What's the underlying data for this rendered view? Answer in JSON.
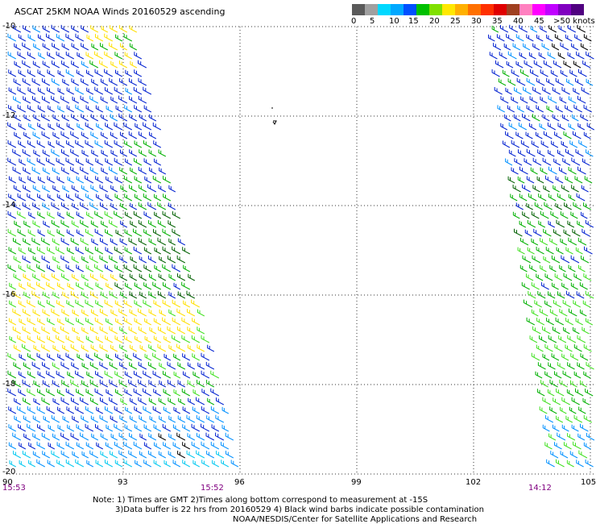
{
  "title": "ASCAT 25KM NOAA Winds 20160529 ascending",
  "legend": {
    "labels": [
      "0",
      "5",
      "10",
      "15",
      "20",
      "25",
      "30",
      "35",
      "40",
      "45",
      ">50 knots"
    ],
    "colors": [
      "#5a5a5a",
      "#a0a0a0",
      "#00d8ff",
      "#00a8ff",
      "#0050ff",
      "#00c000",
      "#80e000",
      "#ffe800",
      "#ffb000",
      "#ff7000",
      "#ff3000",
      "#e00000",
      "#a04020",
      "#ff80c0",
      "#ff00ff",
      "#c000ff",
      "#8000c0",
      "#500080"
    ]
  },
  "axes": {
    "y_labels": [
      "-10",
      "-12",
      "-14",
      "-16",
      "-18",
      "-20"
    ],
    "x_labels": [
      "90",
      "93",
      "96",
      "99",
      "102",
      "105"
    ]
  },
  "time_labels": [
    "15:53",
    "15:52",
    "14:12"
  ],
  "notes": {
    "line1": "Note: 1) Times are GMT 2)Times along bottom correspond to measurement at -15S",
    "line2": "3)Data buffer is 22 hrs from 20160529 4) Black wind barbs indicate possible contamination",
    "line3": "NOAA/NESDIS/Center for Satellite Applications and Research"
  },
  "barb_colors": {
    "cyan": "#00c8f0",
    "lightblue": "#0090ff",
    "blue": "#0020d0",
    "green": "#00b000",
    "lightgreen": "#40e020",
    "darkgreen": "#006000",
    "yellow": "#ffe000",
    "black": "#000000"
  }
}
